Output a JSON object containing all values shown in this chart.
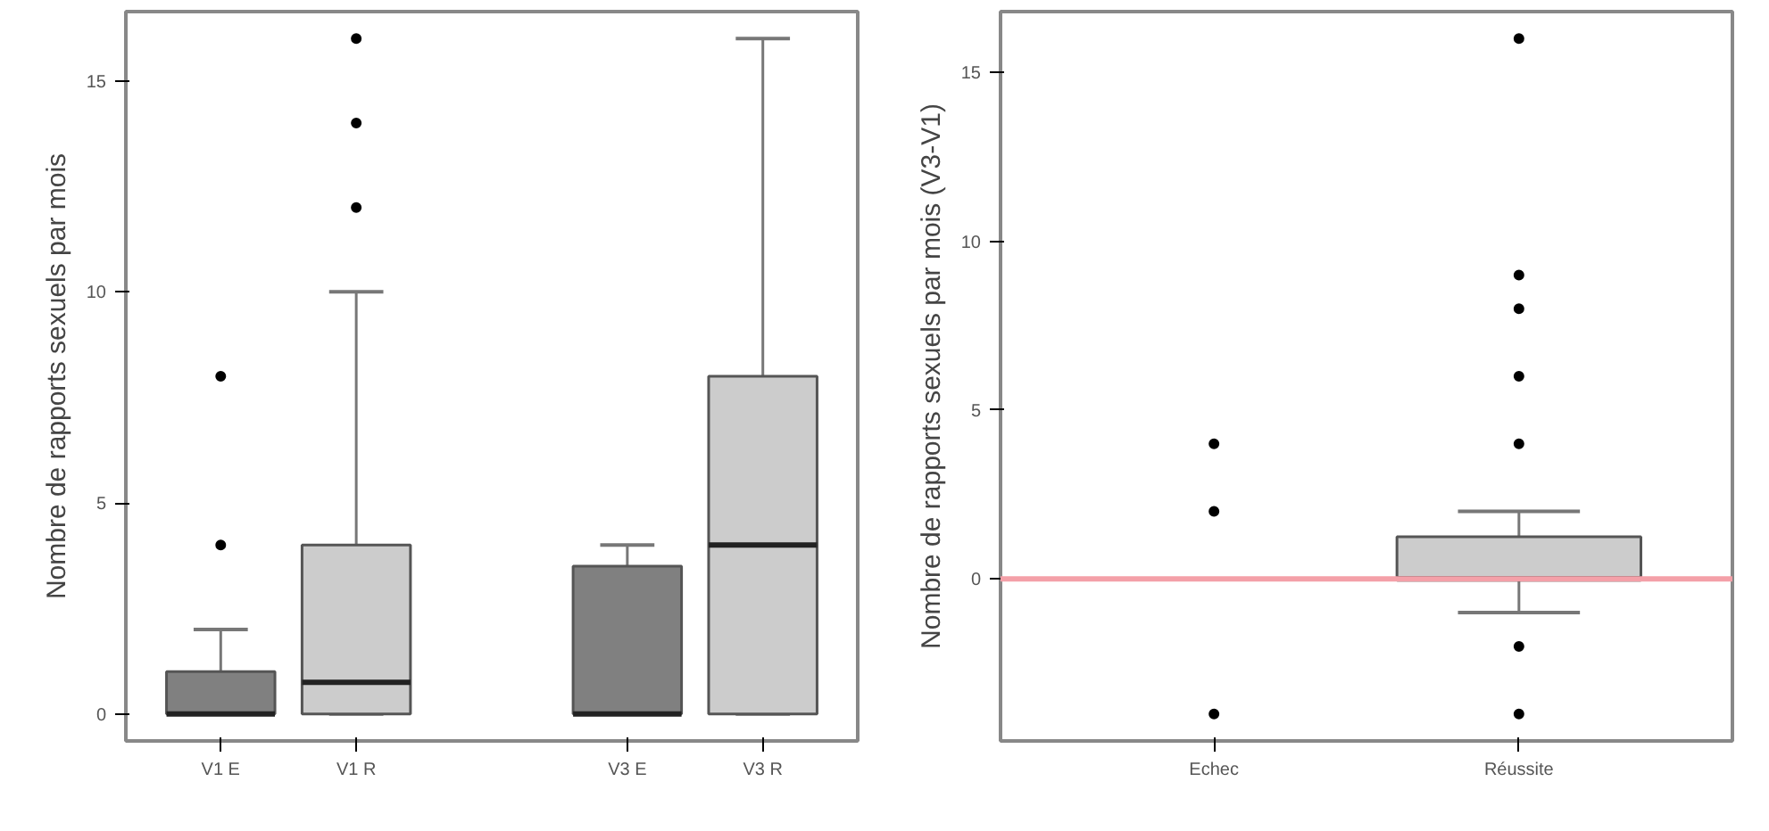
{
  "chart_data": [
    {
      "type": "box",
      "ylabel": "Nombre de rapports sexuels par mois",
      "categories": [
        "V1 E",
        "V1 R",
        null,
        "V3 E",
        "V3 R"
      ],
      "boxes": [
        {
          "low": 0,
          "q1": 0,
          "median": 0,
          "q3": 1,
          "high": 2,
          "outliers": [
            4,
            8
          ]
        },
        {
          "low": 0,
          "q1": 0,
          "median": 0.75,
          "q3": 4,
          "high": 10,
          "outliers": [
            12,
            14,
            16
          ]
        },
        null,
        {
          "low": 0,
          "q1": 0,
          "median": 0,
          "q3": 3.5,
          "high": 4
        },
        {
          "low": 0,
          "q1": 0,
          "median": 4,
          "q3": 8,
          "high": 16
        }
      ],
      "colors": [
        "#808080",
        "#cccccc",
        null,
        "#808080",
        "#cccccc"
      ],
      "ylim": [
        -0.64,
        16.64
      ],
      "yticks": [
        0,
        5,
        10,
        15
      ],
      "grid": false
    },
    {
      "type": "box",
      "ylabel": "Nombre de rapports sexuels par mois (V3-V1)",
      "categories": [
        "Echec",
        "Réussite"
      ],
      "boxes": [
        {
          "low": 0,
          "q1": 0,
          "median": 0,
          "q3": 0,
          "high": 0,
          "outliers": [
            -4,
            2,
            4
          ]
        },
        {
          "low": -1,
          "q1": 0,
          "median": 0,
          "q3": 1.25,
          "high": 2,
          "outliers": [
            -4,
            -2,
            4,
            6,
            8,
            9,
            16
          ]
        }
      ],
      "colors": [
        "#808080",
        "#cccccc"
      ],
      "ylim": [
        -4.8,
        16.8
      ],
      "yticks": [
        0,
        5,
        10,
        15
      ],
      "grid": false,
      "ref_lines": [
        {
          "axis": "y",
          "value": 0,
          "label": null,
          "color": "#f4a0a8"
        }
      ]
    }
  ]
}
